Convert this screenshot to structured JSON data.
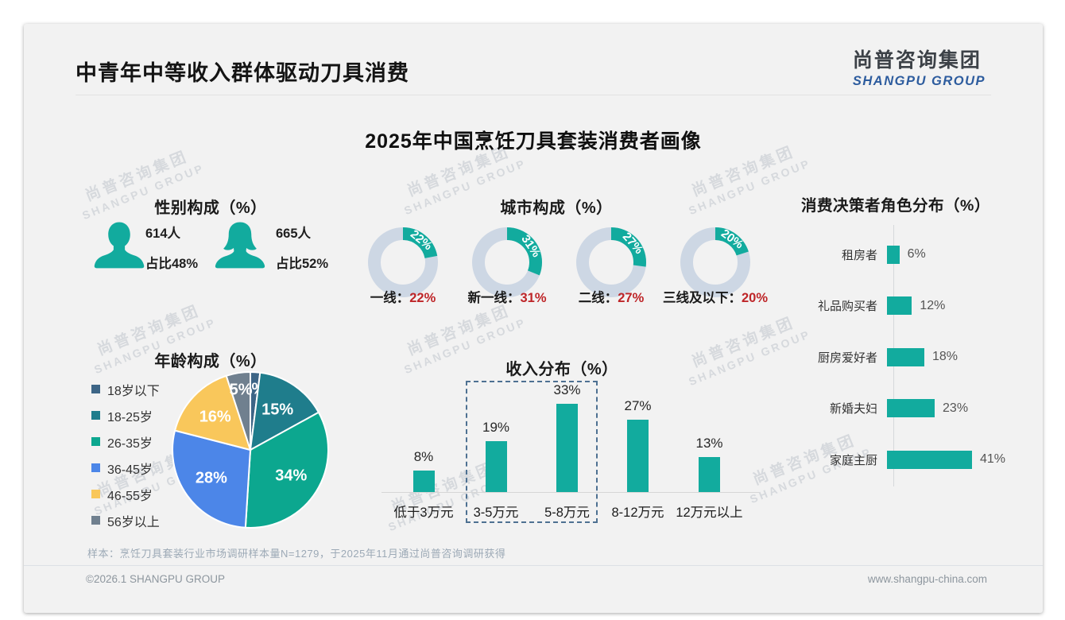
{
  "header": {
    "title": "中青年中等收入群体驱动刀具消费",
    "logo_cn": "尚普咨询集团",
    "logo_en": "SHANGPU GROUP"
  },
  "main_title": "2025年中国烹饪刀具套装消费者画像",
  "watermark": {
    "line1": "尚普咨询集团",
    "line2": "SHANGPU GROUP"
  },
  "footer": {
    "note": "样本：烹饪刀具套装行业市场调研样本量N=1279，于2025年11月通过尚普咨询调研获得",
    "copyright": "©2026.1 SHANGPU GROUP",
    "website": "www.shangpu-china.com"
  },
  "colors": {
    "teal": "#12AB9E",
    "donut_track": "#CDD7E4",
    "red_value": "#BE2528",
    "axis": "#D5D8DB",
    "dash_highlight": "#4E7192"
  },
  "chart_data": [
    {
      "id": "gender",
      "type": "table",
      "title": "性别构成（%）",
      "items": [
        {
          "icon": "male-icon",
          "count": "614人",
          "share": "占比48%"
        },
        {
          "icon": "female-icon",
          "count": "665人",
          "share": "占比52%"
        }
      ]
    },
    {
      "id": "city",
      "type": "pie",
      "subtype": "donut-set",
      "title": "城市构成（%）",
      "unit": "%",
      "items": [
        {
          "label": "一线",
          "value": 22
        },
        {
          "label": "新一线",
          "value": 31
        },
        {
          "label": "二线",
          "value": 27
        },
        {
          "label": "三线及以下",
          "value": 20
        }
      ]
    },
    {
      "id": "decision",
      "type": "bar",
      "orientation": "horizontal",
      "title": "消费决策者角色分布（%）",
      "categories": [
        "租房者",
        "礼品购买者",
        "厨房爱好者",
        "新婚夫妇",
        "家庭主厨"
      ],
      "values": [
        6,
        12,
        18,
        23,
        41
      ],
      "xlim": [
        0,
        45
      ],
      "grid": false
    },
    {
      "id": "age",
      "type": "pie",
      "title": "年龄构成（%）",
      "categories": [
        "18岁以下",
        "18-25岁",
        "26-35岁",
        "36-45岁",
        "46-55岁",
        "56岁以上"
      ],
      "values": [
        2,
        15,
        34,
        28,
        16,
        5
      ],
      "colors": [
        "#3D6586",
        "#1F7D8C",
        "#0CA78F",
        "#4C86E8",
        "#F9C75B",
        "#70808F"
      ],
      "legend_position": "left",
      "label_format": "value%"
    },
    {
      "id": "income",
      "type": "bar",
      "title": "收入分布（%）",
      "categories": [
        "低于3万元",
        "3-5万元",
        "5-8万元",
        "8-12万元",
        "12万元以上"
      ],
      "values": [
        8,
        19,
        33,
        27,
        13
      ],
      "ylim": [
        0,
        35
      ],
      "highlight_categories": [
        "3-5万元",
        "5-8万元"
      ],
      "grid": false
    }
  ]
}
